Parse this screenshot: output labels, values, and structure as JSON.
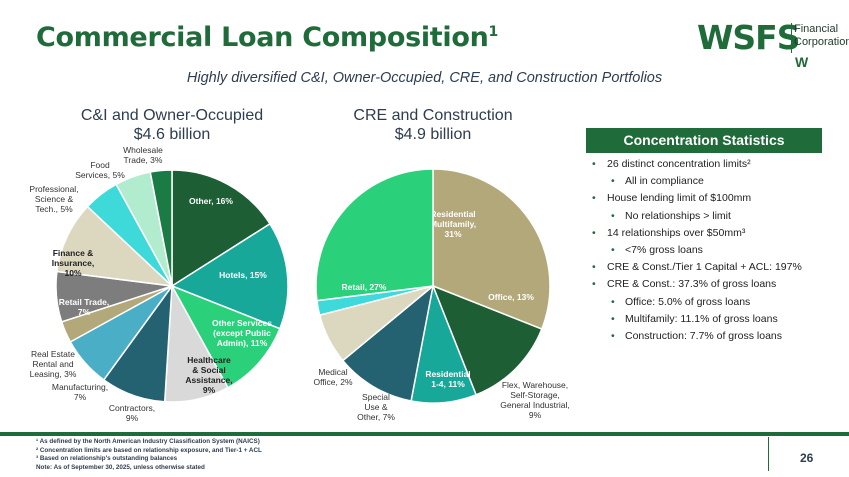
{
  "header": {
    "title": "Commercial Loan Composition",
    "title_sup": "1",
    "subtitle": "Highly diversified C&I, Owner-Occupied, CRE, and Construction Portfolios"
  },
  "logo": {
    "main": "WSFS",
    "line1": "Financial",
    "line2": "Corporation",
    "mark": "W"
  },
  "ci_pie": {
    "title_line1": "C&I and Owner-Occupied",
    "title_line2": "$4.6 billion"
  },
  "cre_pie": {
    "title_line1": "CRE and Construction",
    "title_line2": "$4.9 billion"
  },
  "chart_data": [
    {
      "type": "pie",
      "title": "C&I and Owner-Occupied $4.6 billion",
      "slices": [
        {
          "label": "Other",
          "value": 16,
          "color": "#1d5e34",
          "text_color": "#ffffff",
          "lines": [
            "Other, 16%"
          ]
        },
        {
          "label": "Hotels",
          "value": 15,
          "color": "#18a89a",
          "text_color": "#ffffff",
          "lines": [
            "Hotels, 15%"
          ]
        },
        {
          "label": "Other Services (except Public Admin)",
          "value": 11,
          "color": "#2ad07a",
          "text_color": "#ffffff",
          "lines": [
            "Other Services",
            "(except Public",
            "Admin), 11%"
          ]
        },
        {
          "label": "Healthcare & Social Assistance",
          "value": 9,
          "color": "#d9d9d9",
          "text_color": "#222222",
          "lines": [
            "Healthcare",
            "& Social",
            "Assistance,",
            "9%"
          ]
        },
        {
          "label": "Contractors",
          "value": 9,
          "color": "#246272",
          "text_color": "#333333",
          "lines": [
            "Contractors,",
            "9%"
          ]
        },
        {
          "label": "Manufacturing",
          "value": 7,
          "color": "#4aaec6",
          "text_color": "#333333",
          "lines": [
            "Manufacturing,",
            "7%"
          ]
        },
        {
          "label": "Real Estate Rental and Leasing",
          "value": 3,
          "color": "#b3a879",
          "text_color": "#333333",
          "lines": [
            "Real Estate",
            "Rental and",
            "Leasing, 3%"
          ]
        },
        {
          "label": "Retail Trade",
          "value": 7,
          "color": "#7d7d7d",
          "text_color": "#ffffff",
          "lines": [
            "Retail Trade,",
            "7%"
          ]
        },
        {
          "label": "Finance & Insurance",
          "value": 10,
          "color": "#dcd8c0",
          "text_color": "#222222",
          "lines": [
            "Finance &",
            "Insurance,",
            "10%"
          ]
        },
        {
          "label": "Professional, Science & Tech.",
          "value": 5,
          "color": "#3ed9d9",
          "text_color": "#333333",
          "lines": [
            "Professional,",
            "Science &",
            "Tech., 5%"
          ]
        },
        {
          "label": "Food Services",
          "value": 5,
          "color": "#b1eccf",
          "text_color": "#333333",
          "lines": [
            "Food",
            "Services, 5%"
          ]
        },
        {
          "label": "Wholesale Trade",
          "value": 3,
          "color": "#1b7b45",
          "text_color": "#333333",
          "lines": [
            "Wholesale",
            "Trade, 3%"
          ]
        }
      ]
    },
    {
      "type": "pie",
      "title": "CRE and Construction $4.9 billion",
      "slices": [
        {
          "label": "Residential Multifamily",
          "value": 31,
          "color": "#b3a879",
          "text_color": "#ffffff",
          "lines": [
            "Residential",
            "Multifamily,",
            "31%"
          ]
        },
        {
          "label": "Office",
          "value": 13,
          "color": "#1d5e34",
          "text_color": "#ffffff",
          "lines": [
            "Office, 13%"
          ]
        },
        {
          "label": "Flex, Warehouse, Self-Storage, General Industrial",
          "value": 9,
          "color": "#18a89a",
          "text_color": "#333333",
          "lines": [
            "Flex, Warehouse,",
            "Self-Storage,",
            "General Industrial,",
            "9%"
          ]
        },
        {
          "label": "Residential 1-4",
          "value": 11,
          "color": "#246272",
          "text_color": "#ffffff",
          "lines": [
            "Residential",
            "1-4, 11%"
          ]
        },
        {
          "label": "Special Use & Other",
          "value": 7,
          "color": "#dcd8c0",
          "text_color": "#333333",
          "lines": [
            "Special",
            "Use &",
            "Other, 7%"
          ]
        },
        {
          "label": "Medical Office",
          "value": 2,
          "color": "#3ed9d9",
          "text_color": "#333333",
          "lines": [
            "Medical",
            "Office, 2%"
          ]
        },
        {
          "label": "Retail",
          "value": 27,
          "color": "#2ad07a",
          "text_color": "#ffffff",
          "lines": [
            "Retail, 27%"
          ]
        }
      ]
    }
  ],
  "concentration": {
    "header": "Concentration Statistics",
    "items": [
      {
        "level": 1,
        "text": "26 distinct concentration limits²"
      },
      {
        "level": 2,
        "text": "All in compliance"
      },
      {
        "level": 1,
        "text": "House lending limit of $100mm"
      },
      {
        "level": 2,
        "text": "No relationships > limit"
      },
      {
        "level": 1,
        "text": "14 relationships over $50mm³"
      },
      {
        "level": 2,
        "text": "<7% gross loans"
      },
      {
        "level": 1,
        "text": "CRE & Const./Tier 1 Capital + ACL: 197%"
      },
      {
        "level": 1,
        "text": "CRE & Const.: 37.3% of gross loans"
      },
      {
        "level": 2,
        "text": "Office: 5.0% of gross loans"
      },
      {
        "level": 2,
        "text": "Multifamily: 11.1% of gross loans"
      },
      {
        "level": 2,
        "text": "Construction: 7.7% of gross loans"
      }
    ]
  },
  "footnotes": [
    "¹ As defined by the North American Industry Classification System (NAICS)",
    "² Concentration limits are based on relationship exposure, and Tier-1 + ACL",
    "³ Based on relationship's outstanding balances",
    "Note: As of September 30, 2025, unless otherwise stated"
  ],
  "page_number": "26"
}
